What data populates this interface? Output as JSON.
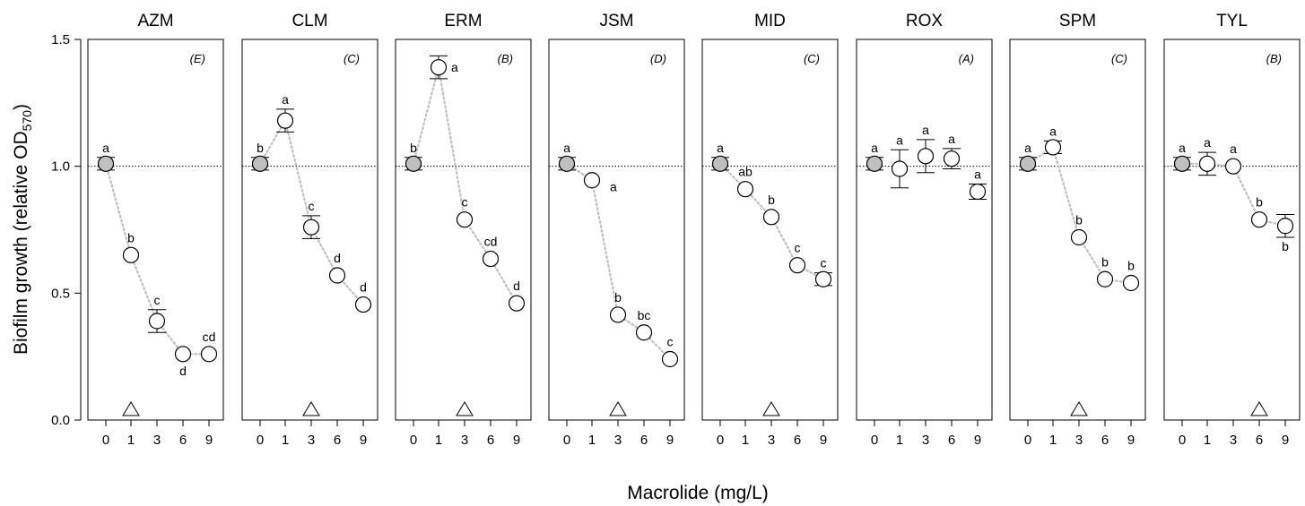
{
  "chart_data": {
    "type": "scatter",
    "xlabel": "Macrolide (mg/L)",
    "ylabel": "Biofilm growth (relative OD",
    "ylabel_subscript": "570",
    "ylabel_close": ")",
    "ylim": [
      0,
      1.5
    ],
    "yticks": [
      0.0,
      0.5,
      1.0,
      1.5
    ],
    "ytick_labels": [
      "0.0",
      "0.5",
      "1.0",
      "1.5"
    ],
    "x_categories": [
      "0",
      "1",
      "3",
      "6",
      "9"
    ],
    "reference_line": 1.0,
    "panels": [
      {
        "name": "AZM",
        "group": "(E)",
        "values": [
          1.01,
          0.65,
          0.39,
          0.26,
          0.26
        ],
        "err": [
          0.025,
          0.0,
          0.045,
          0.0,
          0.0
        ],
        "letters": [
          "a",
          "b",
          "c",
          "d",
          "cd"
        ],
        "letter_pos": [
          "above",
          "above",
          "above",
          "below",
          "above"
        ],
        "trend": true,
        "triangle": "1"
      },
      {
        "name": "CLM",
        "group": "(C)",
        "values": [
          1.01,
          1.18,
          0.76,
          0.57,
          0.455
        ],
        "err": [
          0.025,
          0.045,
          0.045,
          0.0,
          0.0
        ],
        "letters": [
          "b",
          "a",
          "c",
          "d",
          "d"
        ],
        "letter_pos": [
          "above",
          "above",
          "above",
          "above",
          "above"
        ],
        "trend": true,
        "triangle": "3"
      },
      {
        "name": "ERM",
        "group": "(B)",
        "values": [
          1.01,
          1.39,
          0.79,
          0.635,
          0.46
        ],
        "err": [
          0.025,
          0.045,
          0.0,
          0.0,
          0.0
        ],
        "letters": [
          "b",
          "a",
          "c",
          "cd",
          "d"
        ],
        "letter_pos": [
          "above",
          "right",
          "above",
          "above",
          "above"
        ],
        "trend": true,
        "triangle": "3"
      },
      {
        "name": "JSM",
        "group": "(D)",
        "values": [
          1.01,
          0.945,
          0.415,
          0.345,
          0.24
        ],
        "err": [
          0.025,
          0.0,
          0.0,
          0.0,
          0.0
        ],
        "letters": [
          "a",
          "a",
          "b",
          "bc",
          "c"
        ],
        "letter_pos": [
          "above",
          "below-right",
          "above",
          "above",
          "above"
        ],
        "trend": true,
        "triangle": "3"
      },
      {
        "name": "MID",
        "group": "(C)",
        "values": [
          1.01,
          0.91,
          0.8,
          0.61,
          0.555
        ],
        "err": [
          0.025,
          0.0,
          0.0,
          0.0,
          0.025
        ],
        "letters": [
          "a",
          "ab",
          "b",
          "c",
          "c"
        ],
        "letter_pos": [
          "above",
          "above",
          "above",
          "above",
          "above"
        ],
        "trend": true,
        "triangle": "3"
      },
      {
        "name": "ROX",
        "group": "(A)",
        "values": [
          1.01,
          0.99,
          1.04,
          1.03,
          0.9
        ],
        "err": [
          0.025,
          0.075,
          0.065,
          0.04,
          0.03
        ],
        "letters": [
          "a",
          "a",
          "a",
          "a",
          "a"
        ],
        "letter_pos": [
          "above",
          "above",
          "above",
          "above",
          "above"
        ],
        "trend": false,
        "triangle": null
      },
      {
        "name": "SPM",
        "group": "(C)",
        "values": [
          1.01,
          1.075,
          0.72,
          0.555,
          0.54
        ],
        "err": [
          0.025,
          0.025,
          0.0,
          0.0,
          0.0
        ],
        "letters": [
          "a",
          "a",
          "b",
          "b",
          "b"
        ],
        "letter_pos": [
          "above",
          "above",
          "above",
          "above",
          "above"
        ],
        "trend": true,
        "triangle": "3"
      },
      {
        "name": "TYL",
        "group": "(B)",
        "values": [
          1.01,
          1.01,
          1.0,
          0.79,
          0.765
        ],
        "err": [
          0.025,
          0.045,
          0.0,
          0.0,
          0.045
        ],
        "letters": [
          "a",
          "a",
          "a",
          "b",
          "b"
        ],
        "letter_pos": [
          "above",
          "above",
          "above",
          "above",
          "below"
        ],
        "trend": true,
        "triangle": "6"
      }
    ],
    "colors": {
      "control_fill": "#bfbfbf",
      "point_fill": "#ffffff",
      "trend_line": "#c0c0c0",
      "stroke": "#000000"
    }
  }
}
